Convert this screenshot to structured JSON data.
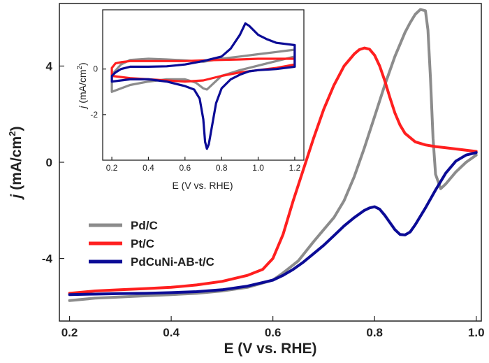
{
  "chart_data": [
    {
      "name": "main",
      "type": "line",
      "xlabel": "E (V vs. RHE)",
      "ylabel_italic": "j",
      "ylabel_unit": " (mA/cm",
      "ylabel_sup": "2",
      "ylabel_close": ")",
      "xlim": [
        0.18,
        1.01
      ],
      "ylim": [
        -6.6,
        6.6
      ],
      "xticks": [
        0.2,
        0.4,
        0.6,
        0.8,
        1.0
      ],
      "xtick_labels": [
        "0.2",
        "0.4",
        "0.6",
        "0.8",
        "1.0"
      ],
      "yticks": [
        -4,
        0,
        4
      ],
      "ytick_labels": [
        "-4",
        "0",
        "4"
      ],
      "legend_position": "bottom-left",
      "series": [
        {
          "name": "Pd/C",
          "color": "#8c8c8c",
          "x": [
            0.2,
            0.25,
            0.3,
            0.35,
            0.4,
            0.45,
            0.5,
            0.55,
            0.6,
            0.62,
            0.65,
            0.68,
            0.7,
            0.72,
            0.74,
            0.76,
            0.78,
            0.8,
            0.82,
            0.84,
            0.86,
            0.87,
            0.88,
            0.89,
            0.9,
            0.905,
            0.91,
            0.915,
            0.92,
            0.93,
            0.94,
            0.96,
            0.98,
            1.0
          ],
          "y": [
            -5.75,
            -5.65,
            -5.6,
            -5.55,
            -5.5,
            -5.45,
            -5.35,
            -5.2,
            -4.9,
            -4.6,
            -4.1,
            -3.3,
            -2.8,
            -2.3,
            -1.6,
            -0.6,
            0.6,
            1.9,
            3.2,
            4.4,
            5.4,
            5.8,
            6.15,
            6.35,
            6.3,
            5.5,
            3.5,
            1.0,
            -0.5,
            -1.1,
            -0.9,
            -0.4,
            0.0,
            0.3
          ]
        },
        {
          "name": "Pt/C",
          "color": "#ff1f1f",
          "x": [
            0.2,
            0.25,
            0.3,
            0.35,
            0.4,
            0.45,
            0.5,
            0.55,
            0.58,
            0.6,
            0.62,
            0.64,
            0.66,
            0.68,
            0.7,
            0.72,
            0.74,
            0.76,
            0.77,
            0.78,
            0.79,
            0.8,
            0.81,
            0.82,
            0.83,
            0.84,
            0.85,
            0.86,
            0.88,
            0.9,
            0.92,
            0.95,
            1.0
          ],
          "y": [
            -5.45,
            -5.35,
            -5.3,
            -5.25,
            -5.2,
            -5.1,
            -4.95,
            -4.7,
            -4.45,
            -4.0,
            -3.0,
            -1.6,
            -0.3,
            1.0,
            2.2,
            3.2,
            4.0,
            4.5,
            4.68,
            4.75,
            4.7,
            4.45,
            4.0,
            3.4,
            2.7,
            2.05,
            1.55,
            1.2,
            0.85,
            0.72,
            0.65,
            0.58,
            0.45
          ]
        },
        {
          "name": "PdCuNi-AB-t/C",
          "color": "#0b0b96",
          "x": [
            0.2,
            0.25,
            0.3,
            0.35,
            0.4,
            0.45,
            0.5,
            0.55,
            0.6,
            0.62,
            0.64,
            0.66,
            0.68,
            0.7,
            0.72,
            0.74,
            0.76,
            0.78,
            0.79,
            0.8,
            0.81,
            0.82,
            0.83,
            0.84,
            0.85,
            0.86,
            0.87,
            0.88,
            0.9,
            0.92,
            0.94,
            0.96,
            0.98,
            1.0
          ],
          "y": [
            -5.5,
            -5.48,
            -5.46,
            -5.45,
            -5.42,
            -5.38,
            -5.3,
            -5.15,
            -4.9,
            -4.7,
            -4.45,
            -4.15,
            -3.8,
            -3.45,
            -3.05,
            -2.65,
            -2.3,
            -2.0,
            -1.9,
            -1.85,
            -1.95,
            -2.2,
            -2.5,
            -2.8,
            -3.0,
            -3.02,
            -2.9,
            -2.6,
            -1.9,
            -1.15,
            -0.45,
            0.05,
            0.3,
            0.4
          ]
        }
      ]
    },
    {
      "name": "inset",
      "type": "line",
      "xlabel": "E (V vs. RHE)",
      "ylabel_italic": "j",
      "ylabel_unit": " (mA/cm",
      "ylabel_sup": "2",
      "ylabel_close": ")",
      "xlim": [
        0.15,
        1.25
      ],
      "ylim": [
        -4.0,
        2.6
      ],
      "xticks": [
        0.2,
        0.4,
        0.6,
        0.8,
        1.0,
        1.2
      ],
      "xtick_labels": [
        "0.2",
        "0.4",
        "0.6",
        "0.8",
        "1.0",
        "1.2"
      ],
      "yticks": [
        -2,
        0
      ],
      "ytick_labels": [
        "-2",
        "0"
      ],
      "series": [
        {
          "name": "Pd/C",
          "color": "#8c8c8c",
          "x": [
            0.2,
            0.25,
            0.3,
            0.4,
            0.5,
            0.6,
            0.7,
            0.8,
            0.9,
            1.0,
            1.1,
            1.2,
            1.2,
            1.1,
            1.0,
            0.9,
            0.8,
            0.76,
            0.72,
            0.7,
            0.66,
            0.6,
            0.5,
            0.4,
            0.3,
            0.25,
            0.2,
            0.2
          ],
          "y": [
            -0.25,
            0.2,
            0.4,
            0.45,
            0.42,
            0.38,
            0.32,
            0.45,
            0.55,
            0.65,
            0.75,
            0.85,
            0.55,
            0.35,
            0.15,
            -0.05,
            -0.3,
            -0.6,
            -0.9,
            -0.85,
            -0.6,
            -0.45,
            -0.45,
            -0.55,
            -0.7,
            -0.85,
            -1.0,
            -0.25
          ]
        },
        {
          "name": "Pt/C",
          "color": "#ff1f1f",
          "x": [
            0.2,
            0.22,
            0.25,
            0.3,
            0.4,
            0.5,
            0.6,
            0.7,
            0.8,
            0.9,
            1.0,
            1.1,
            1.2,
            1.2,
            1.1,
            1.0,
            0.9,
            0.8,
            0.7,
            0.6,
            0.5,
            0.4,
            0.3,
            0.25,
            0.2,
            0.2
          ],
          "y": [
            0.05,
            0.25,
            0.3,
            0.35,
            0.35,
            0.35,
            0.35,
            0.38,
            0.4,
            0.42,
            0.45,
            0.45,
            0.45,
            0.2,
            0.05,
            -0.05,
            -0.15,
            -0.3,
            -0.5,
            -0.55,
            -0.5,
            -0.45,
            -0.4,
            -0.35,
            -0.3,
            0.05
          ]
        },
        {
          "name": "PdCuNi-AB-t/C",
          "color": "#0b0b96",
          "x": [
            0.2,
            0.22,
            0.25,
            0.3,
            0.4,
            0.5,
            0.6,
            0.7,
            0.8,
            0.85,
            0.9,
            0.93,
            0.95,
            1.0,
            1.05,
            1.1,
            1.2,
            1.2,
            1.1,
            1.0,
            0.95,
            0.9,
            0.85,
            0.8,
            0.77,
            0.75,
            0.73,
            0.72,
            0.71,
            0.7,
            0.68,
            0.65,
            0.6,
            0.5,
            0.4,
            0.3,
            0.25,
            0.2,
            0.2
          ],
          "y": [
            -0.3,
            -0.15,
            0.0,
            0.1,
            0.1,
            0.12,
            0.2,
            0.35,
            0.55,
            0.9,
            1.5,
            2.0,
            1.9,
            1.5,
            1.3,
            1.15,
            1.05,
            0.1,
            0.0,
            -0.05,
            -0.1,
            -0.25,
            -0.45,
            -0.85,
            -1.5,
            -2.4,
            -3.3,
            -3.5,
            -3.2,
            -2.2,
            -1.3,
            -0.9,
            -0.75,
            -0.55,
            -0.45,
            -0.45,
            -0.5,
            -0.55,
            -0.3
          ]
        }
      ]
    }
  ]
}
